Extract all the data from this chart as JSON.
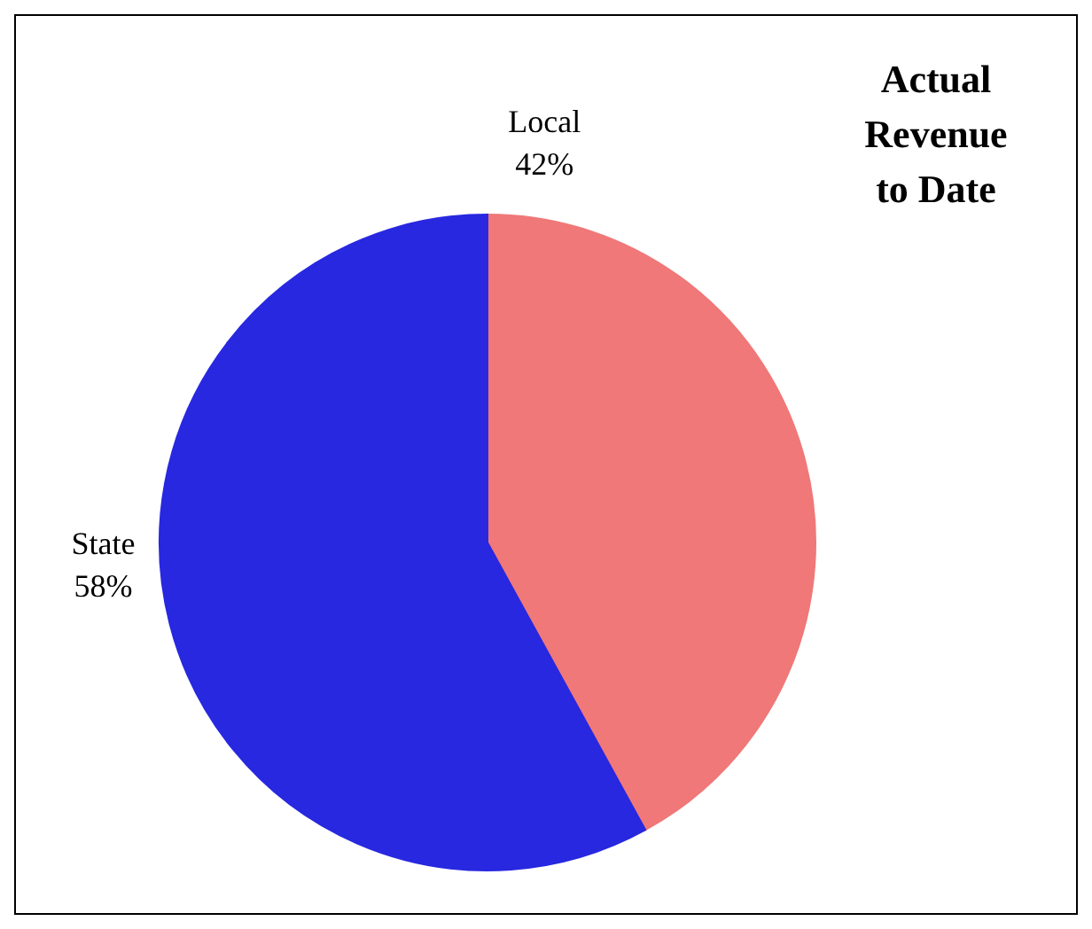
{
  "chart_data": {
    "type": "pie",
    "title": "Actual Revenue to Date",
    "categories": [
      "Local",
      "State"
    ],
    "values": [
      42,
      58
    ],
    "colors": [
      "#f07878",
      "#2828e0"
    ],
    "value_labels": [
      "42%",
      "58%"
    ]
  }
}
